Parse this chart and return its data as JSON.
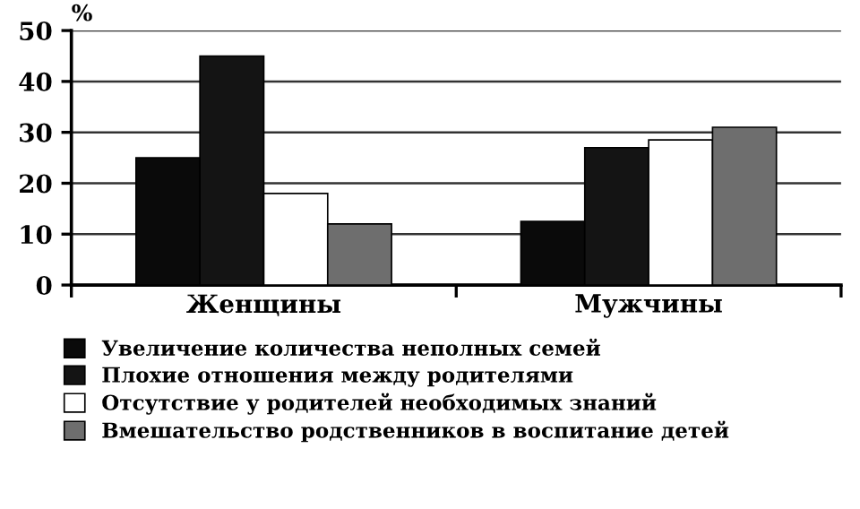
{
  "chart_data": {
    "type": "bar",
    "ylabel": "%",
    "categories": [
      "Женщины",
      "Мужчины"
    ],
    "series": [
      {
        "name": "Увеличение количества неполных семей",
        "color": "#0a0a0a",
        "values": [
          25,
          12.5
        ]
      },
      {
        "name": "Плохие отношения между родителями",
        "color": "#141414",
        "values": [
          45,
          27
        ]
      },
      {
        "name": "Отсутствие у родителей необходимых знаний",
        "color": "#ffffff",
        "values": [
          18,
          28.5
        ]
      },
      {
        "name": "Вмешательство родственников в воспитание детей",
        "color": "#6e6e6e",
        "values": [
          12,
          31
        ]
      }
    ],
    "ylim": [
      0,
      50
    ],
    "yticks": [
      0,
      10,
      20,
      30,
      40,
      50
    ],
    "grid": "y",
    "legend": "bottom"
  }
}
